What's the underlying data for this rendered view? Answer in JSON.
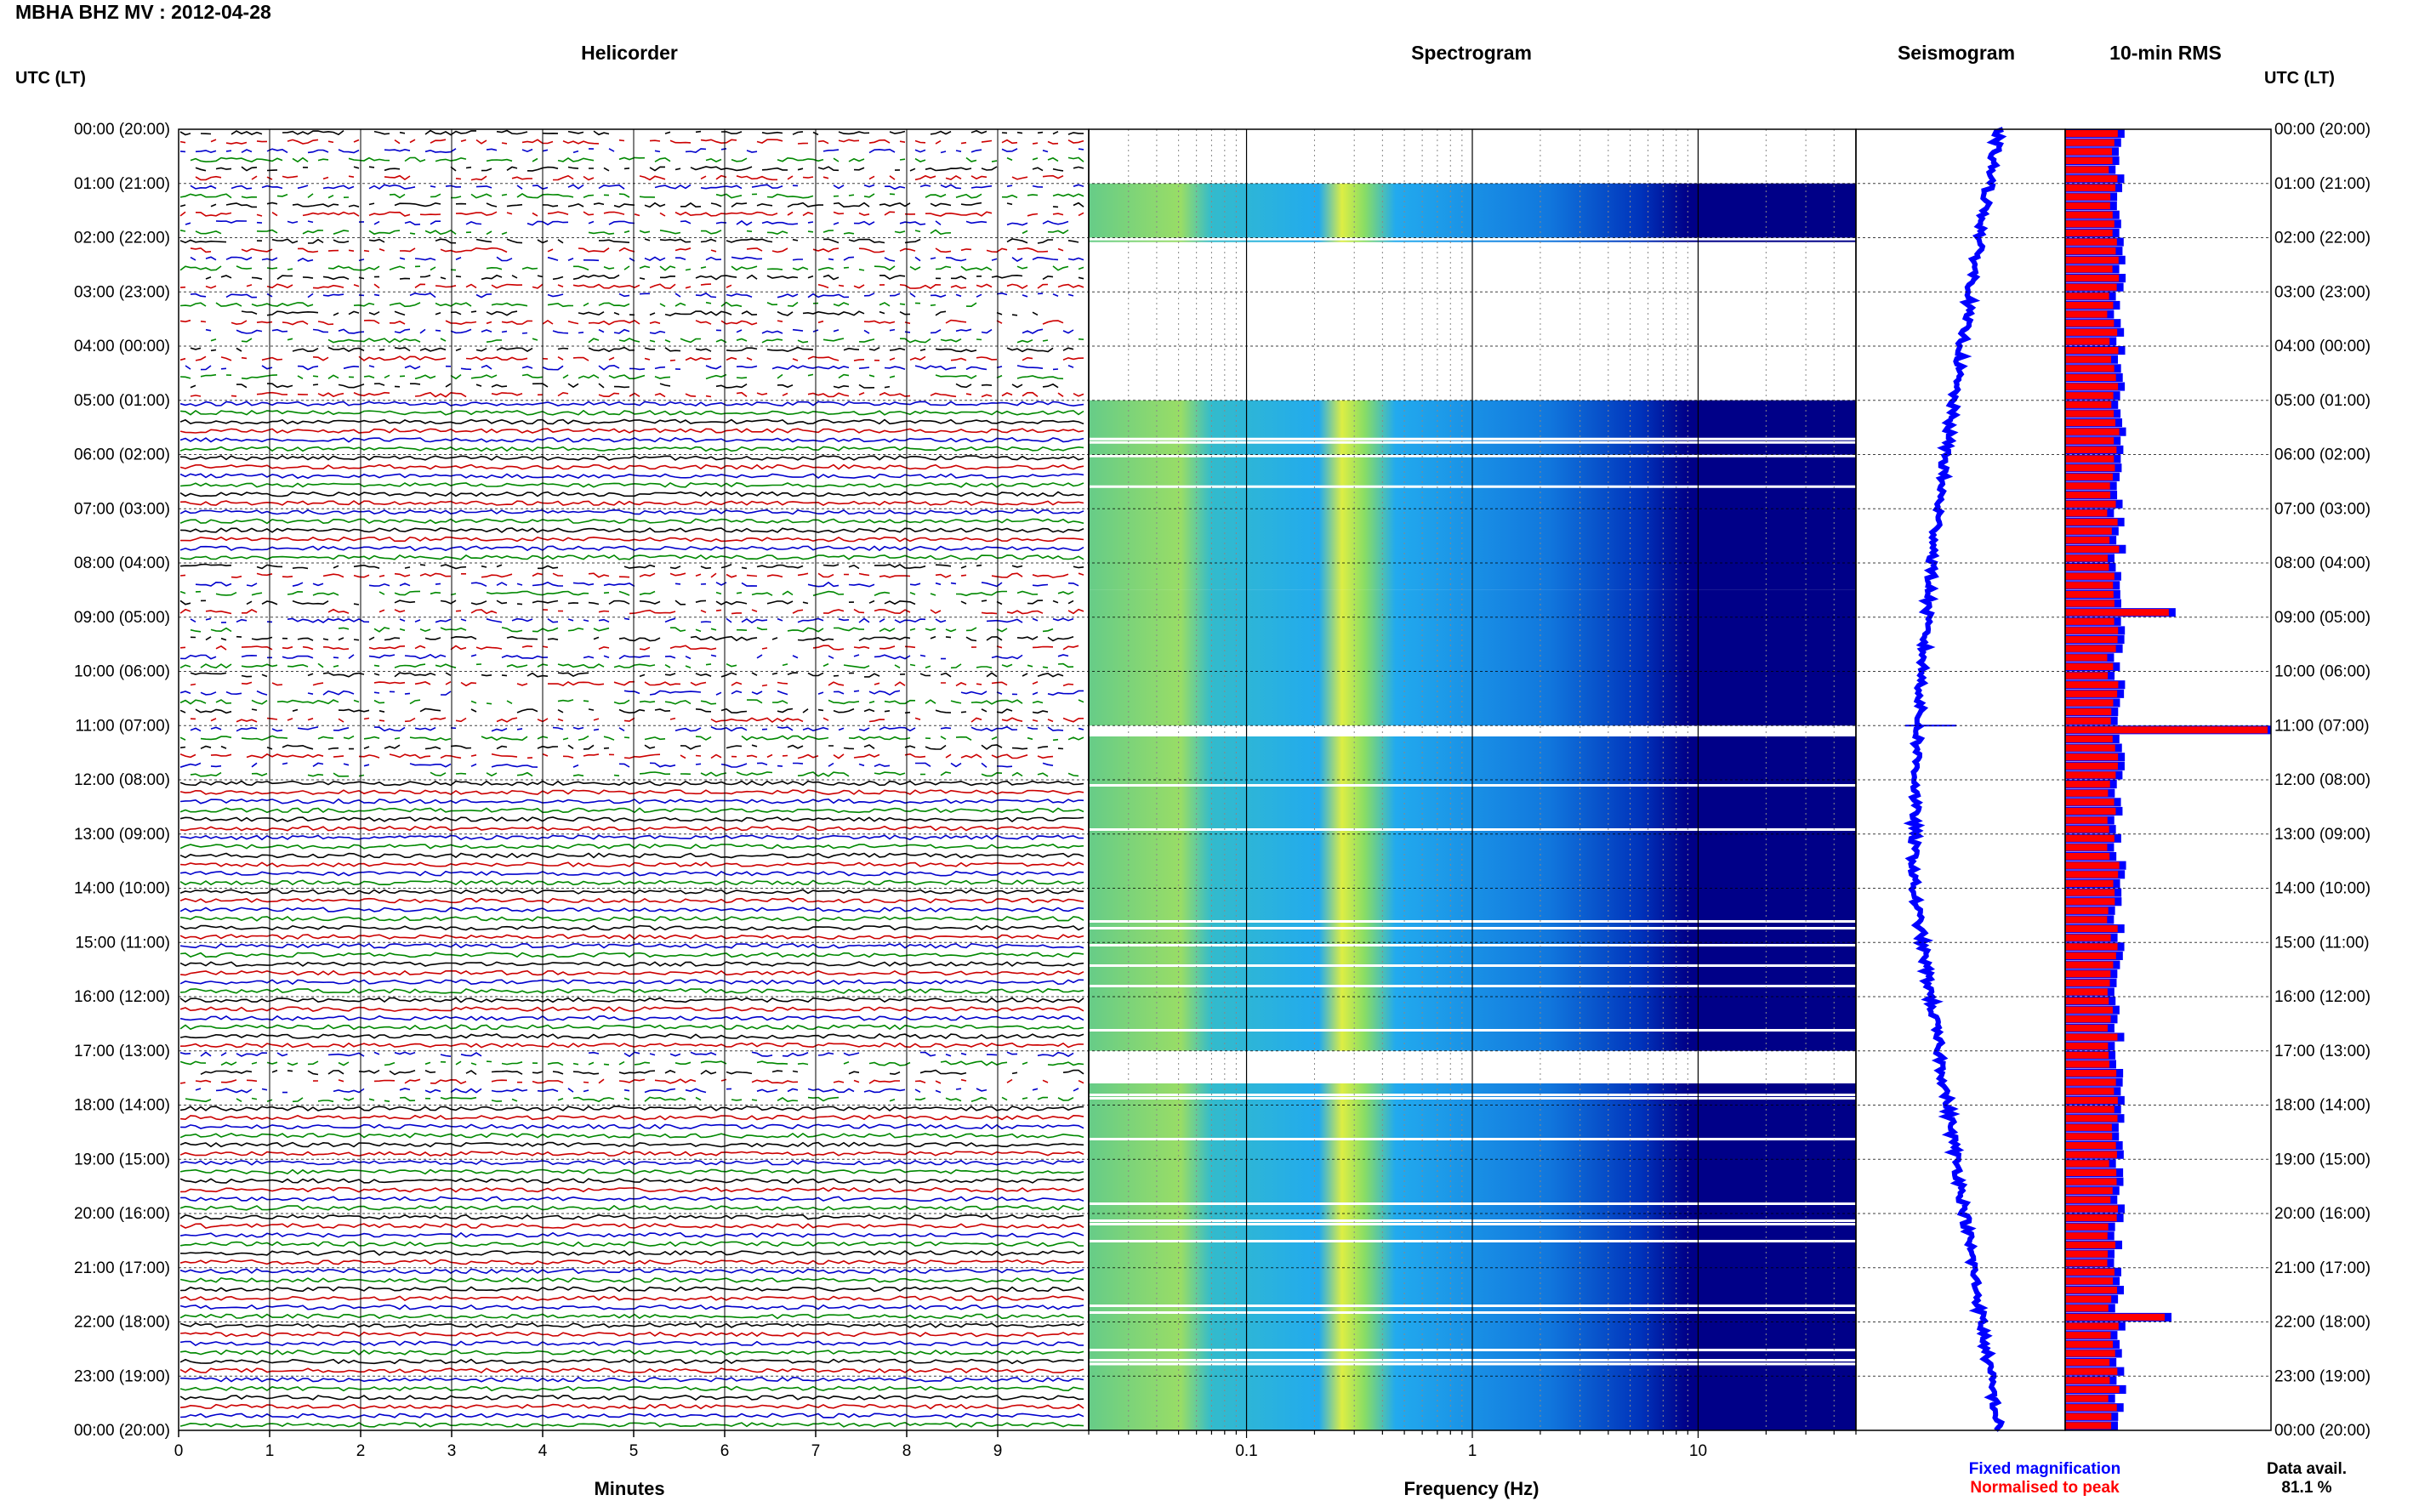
{
  "title": "MBHA BHZ MV : 2012-04-28",
  "left_axis_header": "UTC (LT)",
  "right_axis_header": "UTC (LT)",
  "panels": {
    "helicorder": "Helicorder",
    "spectrogram": "Spectrogram",
    "seismogram": "Seismogram",
    "rms": "10-min RMS"
  },
  "xlabels": {
    "helicorder": "Minutes",
    "spectrogram": "Frequency (Hz)"
  },
  "legend": {
    "fixed": "Fixed magnification",
    "fixed_color": "#0000ff",
    "normalised": "Normalised to peak",
    "normalised_color": "#ff0000"
  },
  "data_avail_label": "Data avail.",
  "data_avail_value": "81.1 %",
  "colors": {
    "trace_cycle": [
      "#000000",
      "#cc0000",
      "#0000cc",
      "#008800"
    ],
    "spec_low": "#000088",
    "spec_mid": "#00aaff",
    "spec_high": "#ffff00",
    "rms_fixed": "#0000ff",
    "rms_norm": "#ff0000"
  },
  "chart_data": [
    {
      "type": "line",
      "panel": "Helicorder",
      "xlabel": "Minutes",
      "xlim": [
        0,
        10
      ],
      "x_ticks": [
        "0",
        "1",
        "2",
        "3",
        "4",
        "5",
        "6",
        "7",
        "8",
        "9"
      ],
      "y_tick_labels": [
        "00:00 (20:00)",
        "01:00 (21:00)",
        "02:00 (22:00)",
        "03:00 (23:00)",
        "04:00 (00:00)",
        "05:00 (01:00)",
        "06:00 (02:00)",
        "07:00 (03:00)",
        "08:00 (04:00)",
        "09:00 (05:00)",
        "10:00 (06:00)",
        "11:00 (07:00)",
        "12:00 (08:00)",
        "13:00 (09:00)",
        "14:00 (10:00)",
        "15:00 (11:00)",
        "16:00 (12:00)",
        "17:00 (13:00)",
        "18:00 (14:00)",
        "19:00 (15:00)",
        "20:00 (16:00)",
        "21:00 (17:00)",
        "22:00 (18:00)",
        "23:00 (19:00)",
        "00:00 (20:00)"
      ],
      "traces_per_hour": 6,
      "gappy_hours": [
        0,
        1,
        2,
        3,
        4,
        8,
        9,
        10,
        11,
        17
      ]
    },
    {
      "type": "heatmap",
      "panel": "Spectrogram",
      "xlabel": "Frequency (Hz)",
      "x_scale": "log",
      "xlim": [
        0.02,
        50
      ],
      "x_tick_labels": [
        "0.1",
        "1",
        "10"
      ],
      "bands": [
        [
          1.0,
          2.0
        ],
        [
          2.05,
          2.07
        ],
        [
          5.0,
          8.5
        ],
        [
          8.5,
          11.0
        ],
        [
          11.2,
          17.0
        ],
        [
          17.6,
          22.75
        ],
        [
          22.8,
          24.0
        ]
      ]
    },
    {
      "type": "scatter",
      "panel": "Seismogram",
      "series": [
        {
          "name": "Fixed magnification"
        }
      ]
    },
    {
      "type": "bar",
      "panel": "10-min RMS",
      "series": [
        {
          "name": "Fixed magnification"
        },
        {
          "name": "Normalised to peak"
        }
      ],
      "peaks": [
        {
          "time": "08:50",
          "value": 0.52
        },
        {
          "time": "11:00",
          "value": 1.0
        },
        {
          "time": "21:50",
          "value": 0.5
        }
      ]
    }
  ]
}
